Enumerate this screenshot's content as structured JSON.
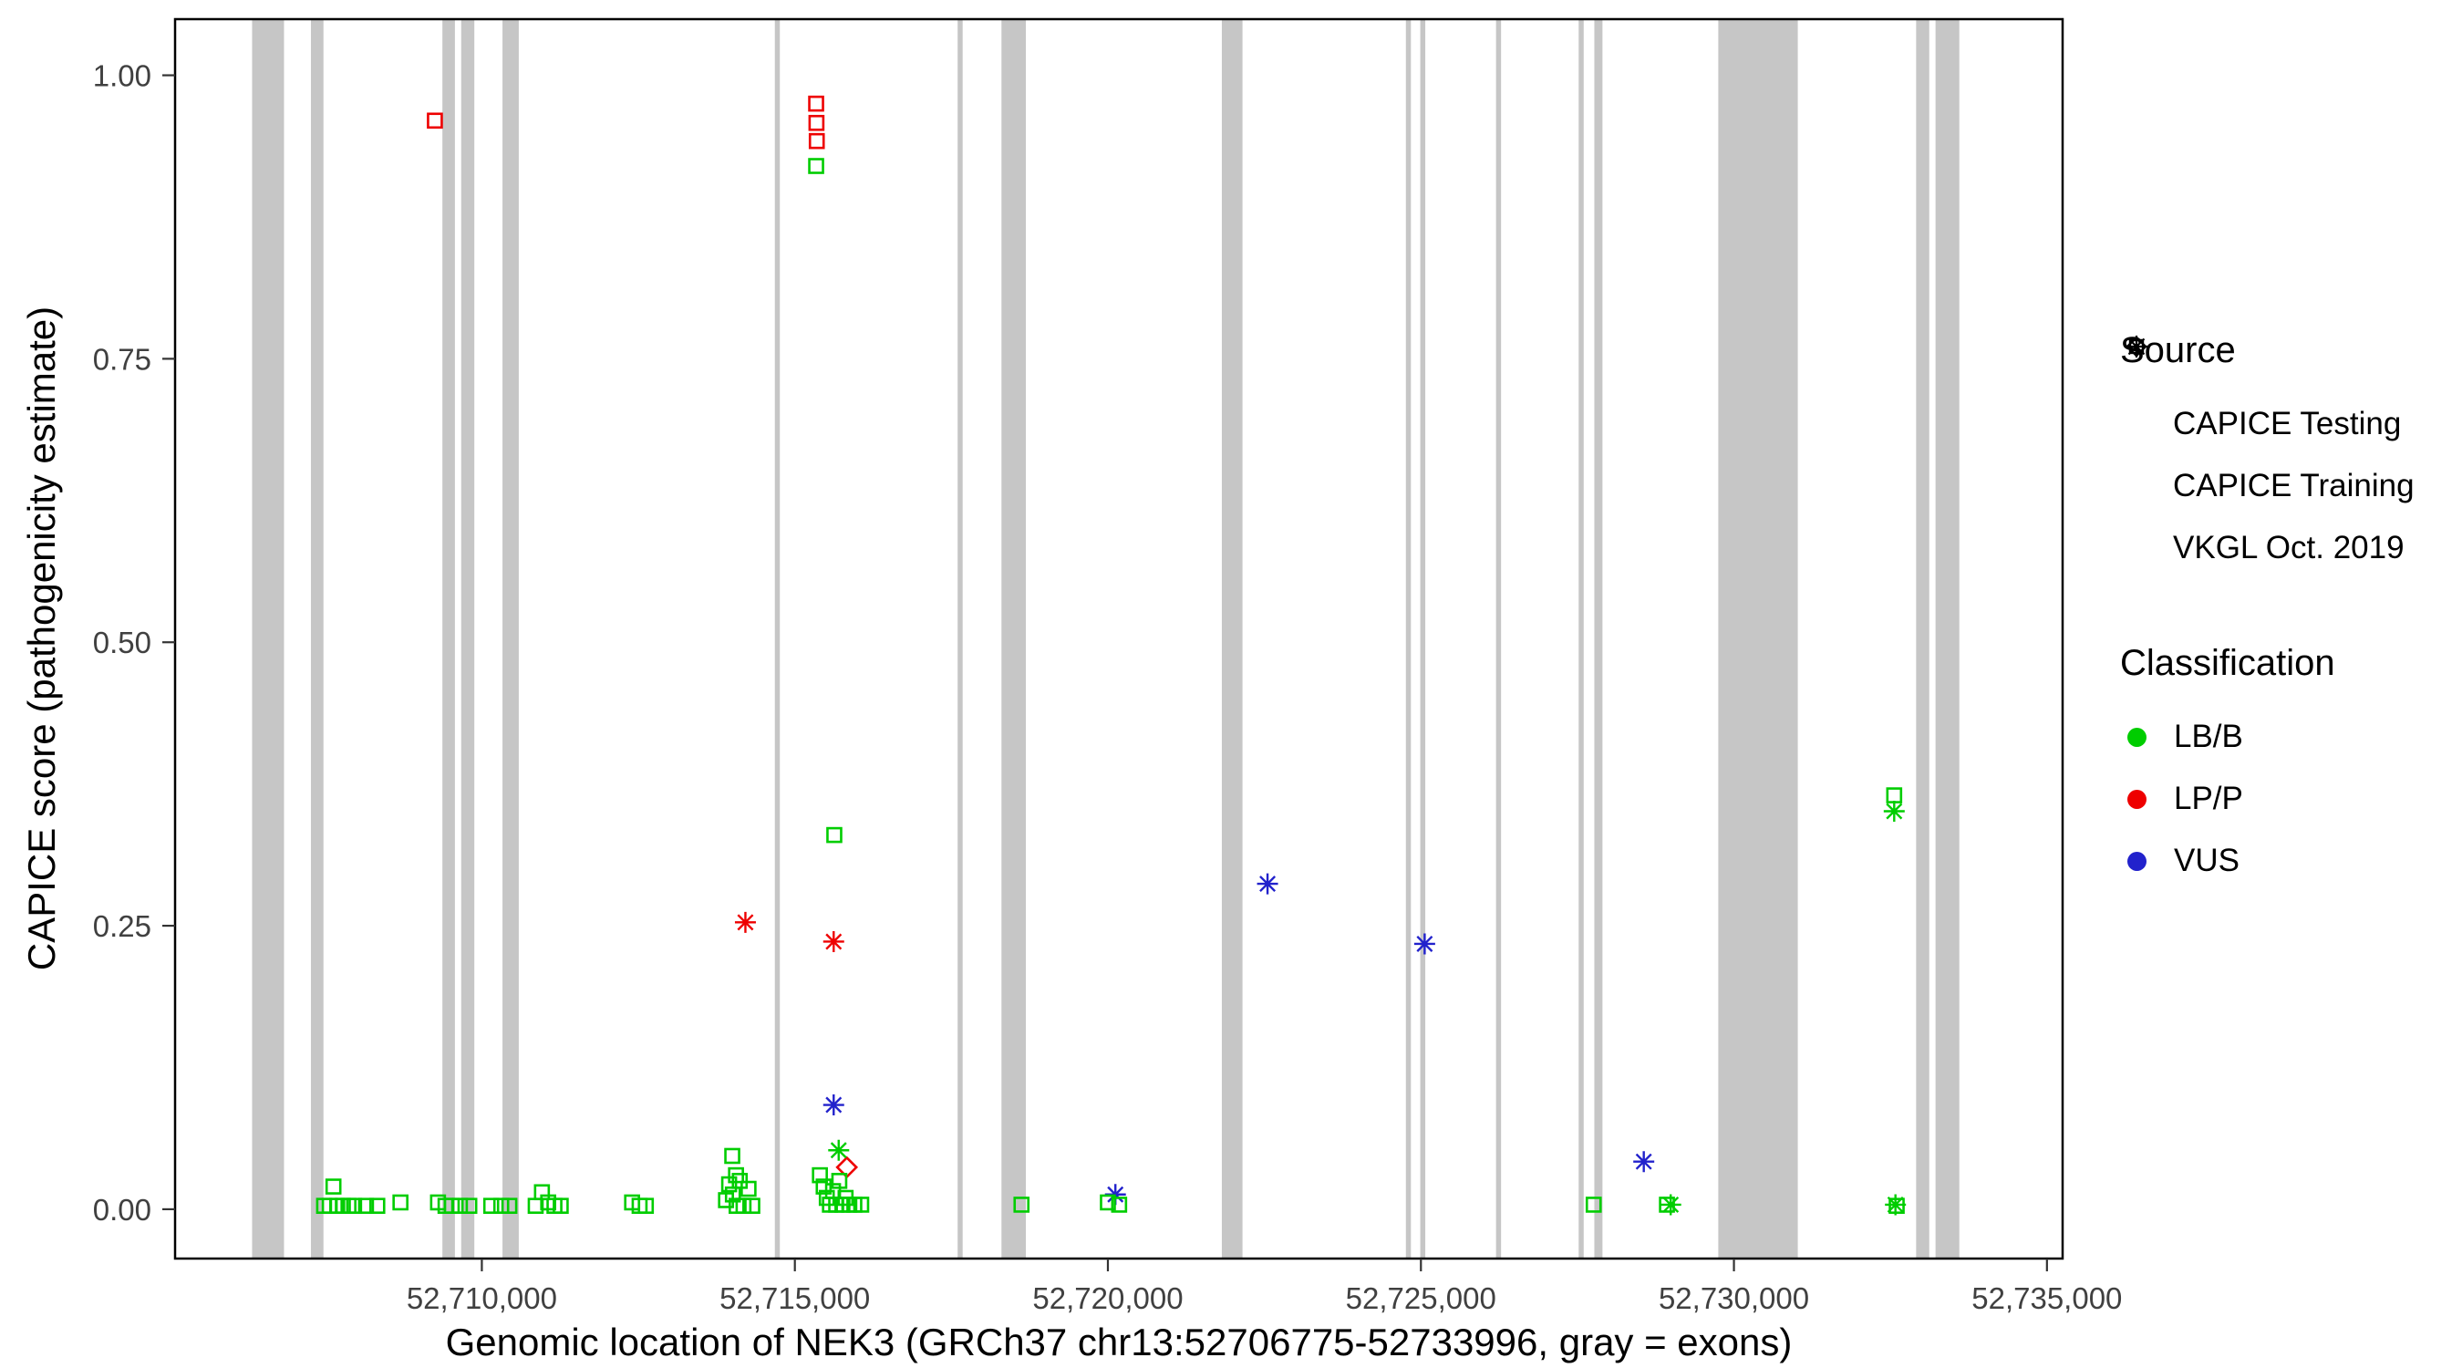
{
  "colors": {
    "lbb": "#00CD00",
    "lpp": "#EE0000",
    "vus": "#2222CC",
    "exon": "#C6C6C6",
    "axis_text": "#404040"
  },
  "legend": {
    "source": {
      "title": "Source",
      "items": [
        {
          "label": "CAPICE Testing",
          "shape": "diamond"
        },
        {
          "label": "CAPICE Training",
          "shape": "square"
        },
        {
          "label": "VKGL Oct. 2019",
          "shape": "asterisk"
        }
      ]
    },
    "classification": {
      "title": "Classification",
      "items": [
        {
          "label": "LB/B",
          "color_key": "lbb"
        },
        {
          "label": "LP/P",
          "color_key": "lpp"
        },
        {
          "label": "VUS",
          "color_key": "vus"
        }
      ]
    }
  },
  "chart_data": {
    "type": "scatter",
    "title": "",
    "xlabel": "Genomic location of NEK3 (GRCh37 chr13:52706775-52733996, gray = exons)",
    "ylabel": "CAPICE score (pathogenicity estimate)",
    "x_domain": [
      52705100,
      52735250
    ],
    "y_domain": [
      -0.0435,
      1.0495
    ],
    "grid": false,
    "legend_position": "right",
    "x_ticks": [
      {
        "value": 52710000,
        "label": "52,710,000"
      },
      {
        "value": 52715000,
        "label": "52,715,000"
      },
      {
        "value": 52720000,
        "label": "52,720,000"
      },
      {
        "value": 52725000,
        "label": "52,725,000"
      },
      {
        "value": 52730000,
        "label": "52,730,000"
      },
      {
        "value": 52735000,
        "label": "52,735,000"
      }
    ],
    "y_ticks": [
      {
        "value": 0.0,
        "label": "0.00"
      },
      {
        "value": 0.25,
        "label": "0.25"
      },
      {
        "value": 0.5,
        "label": "0.50"
      },
      {
        "value": 0.75,
        "label": "0.75"
      },
      {
        "value": 1.0,
        "label": "1.00"
      }
    ],
    "exons": [
      [
        52706330,
        52706840
      ],
      [
        52707270,
        52707470
      ],
      [
        52709370,
        52709570
      ],
      [
        52709670,
        52709880
      ],
      [
        52710330,
        52710590
      ],
      [
        52714680,
        52714760
      ],
      [
        52717600,
        52717680
      ],
      [
        52718300,
        52718690
      ],
      [
        52721820,
        52722150
      ],
      [
        52724760,
        52724840
      ],
      [
        52724990,
        52725070
      ],
      [
        52726200,
        52726280
      ],
      [
        52727520,
        52727600
      ],
      [
        52727770,
        52727900
      ],
      [
        52729750,
        52731020
      ],
      [
        52732910,
        52733120
      ],
      [
        52733220,
        52733600
      ]
    ],
    "points": [
      {
        "x": 52709250,
        "y": 0.96,
        "s": "training",
        "c": "LP/P"
      },
      {
        "x": 52715340,
        "y": 0.975,
        "s": "training",
        "c": "LP/P"
      },
      {
        "x": 52715345,
        "y": 0.958,
        "s": "training",
        "c": "LP/P"
      },
      {
        "x": 52715350,
        "y": 0.942,
        "s": "training",
        "c": "LP/P"
      },
      {
        "x": 52714210,
        "y": 0.253,
        "s": "vkgl",
        "c": "LP/P"
      },
      {
        "x": 52715620,
        "y": 0.236,
        "s": "vkgl",
        "c": "LP/P"
      },
      {
        "x": 52715830,
        "y": 0.037,
        "s": "testing",
        "c": "LP/P"
      },
      {
        "x": 52722550,
        "y": 0.287,
        "s": "vkgl",
        "c": "VUS"
      },
      {
        "x": 52725060,
        "y": 0.234,
        "s": "vkgl",
        "c": "VUS"
      },
      {
        "x": 52715620,
        "y": 0.092,
        "s": "vkgl",
        "c": "VUS"
      },
      {
        "x": 52728560,
        "y": 0.042,
        "s": "vkgl",
        "c": "VUS"
      },
      {
        "x": 52720120,
        "y": 0.013,
        "s": "vkgl",
        "c": "VUS"
      },
      {
        "x": 52715340,
        "y": 0.92,
        "s": "training",
        "c": "LB/B"
      },
      {
        "x": 52715630,
        "y": 0.33,
        "s": "training",
        "c": "LB/B"
      },
      {
        "x": 52732560,
        "y": 0.365,
        "s": "training",
        "c": "LB/B"
      },
      {
        "x": 52732560,
        "y": 0.351,
        "s": "vkgl",
        "c": "LB/B"
      },
      {
        "x": 52715700,
        "y": 0.052,
        "s": "vkgl",
        "c": "LB/B"
      },
      {
        "x": 52707480,
        "y": 0.003,
        "s": "training",
        "c": "LB/B"
      },
      {
        "x": 52707570,
        "y": 0.003,
        "s": "training",
        "c": "LB/B"
      },
      {
        "x": 52707630,
        "y": 0.02,
        "s": "training",
        "c": "LB/B"
      },
      {
        "x": 52707690,
        "y": 0.003,
        "s": "training",
        "c": "LB/B"
      },
      {
        "x": 52707780,
        "y": 0.003,
        "s": "training",
        "c": "LB/B"
      },
      {
        "x": 52707870,
        "y": 0.003,
        "s": "training",
        "c": "LB/B"
      },
      {
        "x": 52707960,
        "y": 0.003,
        "s": "training",
        "c": "LB/B"
      },
      {
        "x": 52708150,
        "y": 0.003,
        "s": "training",
        "c": "LB/B"
      },
      {
        "x": 52708330,
        "y": 0.003,
        "s": "training",
        "c": "LB/B"
      },
      {
        "x": 52708700,
        "y": 0.006,
        "s": "training",
        "c": "LB/B"
      },
      {
        "x": 52709300,
        "y": 0.006,
        "s": "training",
        "c": "LB/B"
      },
      {
        "x": 52709420,
        "y": 0.003,
        "s": "training",
        "c": "LB/B"
      },
      {
        "x": 52709520,
        "y": 0.003,
        "s": "training",
        "c": "LB/B"
      },
      {
        "x": 52709650,
        "y": 0.003,
        "s": "training",
        "c": "LB/B"
      },
      {
        "x": 52709800,
        "y": 0.003,
        "s": "training",
        "c": "LB/B"
      },
      {
        "x": 52710150,
        "y": 0.003,
        "s": "training",
        "c": "LB/B"
      },
      {
        "x": 52710310,
        "y": 0.003,
        "s": "training",
        "c": "LB/B"
      },
      {
        "x": 52710440,
        "y": 0.003,
        "s": "training",
        "c": "LB/B"
      },
      {
        "x": 52710860,
        "y": 0.003,
        "s": "training",
        "c": "LB/B"
      },
      {
        "x": 52710960,
        "y": 0.015,
        "s": "training",
        "c": "LB/B"
      },
      {
        "x": 52711060,
        "y": 0.006,
        "s": "training",
        "c": "LB/B"
      },
      {
        "x": 52711160,
        "y": 0.003,
        "s": "training",
        "c": "LB/B"
      },
      {
        "x": 52711260,
        "y": 0.003,
        "s": "training",
        "c": "LB/B"
      },
      {
        "x": 52712400,
        "y": 0.006,
        "s": "training",
        "c": "LB/B"
      },
      {
        "x": 52712520,
        "y": 0.003,
        "s": "training",
        "c": "LB/B"
      },
      {
        "x": 52712620,
        "y": 0.003,
        "s": "training",
        "c": "LB/B"
      },
      {
        "x": 52713900,
        "y": 0.008,
        "s": "training",
        "c": "LB/B"
      },
      {
        "x": 52713950,
        "y": 0.022,
        "s": "training",
        "c": "LB/B"
      },
      {
        "x": 52714000,
        "y": 0.047,
        "s": "training",
        "c": "LB/B"
      },
      {
        "x": 52714010,
        "y": 0.013,
        "s": "training",
        "c": "LB/B"
      },
      {
        "x": 52714060,
        "y": 0.03,
        "s": "training",
        "c": "LB/B"
      },
      {
        "x": 52714070,
        "y": 0.003,
        "s": "training",
        "c": "LB/B"
      },
      {
        "x": 52714120,
        "y": 0.025,
        "s": "training",
        "c": "LB/B"
      },
      {
        "x": 52714180,
        "y": 0.003,
        "s": "training",
        "c": "LB/B"
      },
      {
        "x": 52714260,
        "y": 0.018,
        "s": "training",
        "c": "LB/B"
      },
      {
        "x": 52714320,
        "y": 0.003,
        "s": "training",
        "c": "LB/B"
      },
      {
        "x": 52715400,
        "y": 0.03,
        "s": "training",
        "c": "LB/B"
      },
      {
        "x": 52715460,
        "y": 0.02,
        "s": "training",
        "c": "LB/B"
      },
      {
        "x": 52715510,
        "y": 0.01,
        "s": "training",
        "c": "LB/B"
      },
      {
        "x": 52715560,
        "y": 0.004,
        "s": "training",
        "c": "LB/B"
      },
      {
        "x": 52715610,
        "y": 0.016,
        "s": "training",
        "c": "LB/B"
      },
      {
        "x": 52715660,
        "y": 0.004,
        "s": "training",
        "c": "LB/B"
      },
      {
        "x": 52715710,
        "y": 0.025,
        "s": "training",
        "c": "LB/B"
      },
      {
        "x": 52715760,
        "y": 0.004,
        "s": "training",
        "c": "LB/B"
      },
      {
        "x": 52715810,
        "y": 0.01,
        "s": "training",
        "c": "LB/B"
      },
      {
        "x": 52715870,
        "y": 0.004,
        "s": "training",
        "c": "LB/B"
      },
      {
        "x": 52715950,
        "y": 0.004,
        "s": "training",
        "c": "LB/B"
      },
      {
        "x": 52716060,
        "y": 0.004,
        "s": "training",
        "c": "LB/B"
      },
      {
        "x": 52718620,
        "y": 0.004,
        "s": "training",
        "c": "LB/B"
      },
      {
        "x": 52720000,
        "y": 0.006,
        "s": "training",
        "c": "LB/B"
      },
      {
        "x": 52720180,
        "y": 0.004,
        "s": "training",
        "c": "LB/B"
      },
      {
        "x": 52727760,
        "y": 0.004,
        "s": "training",
        "c": "LB/B"
      },
      {
        "x": 52728930,
        "y": 0.004,
        "s": "training",
        "c": "LB/B"
      },
      {
        "x": 52732600,
        "y": 0.003,
        "s": "training",
        "c": "LB/B"
      },
      {
        "x": 52728990,
        "y": 0.004,
        "s": "vkgl",
        "c": "LB/B"
      },
      {
        "x": 52732580,
        "y": 0.004,
        "s": "vkgl",
        "c": "LB/B"
      }
    ]
  }
}
